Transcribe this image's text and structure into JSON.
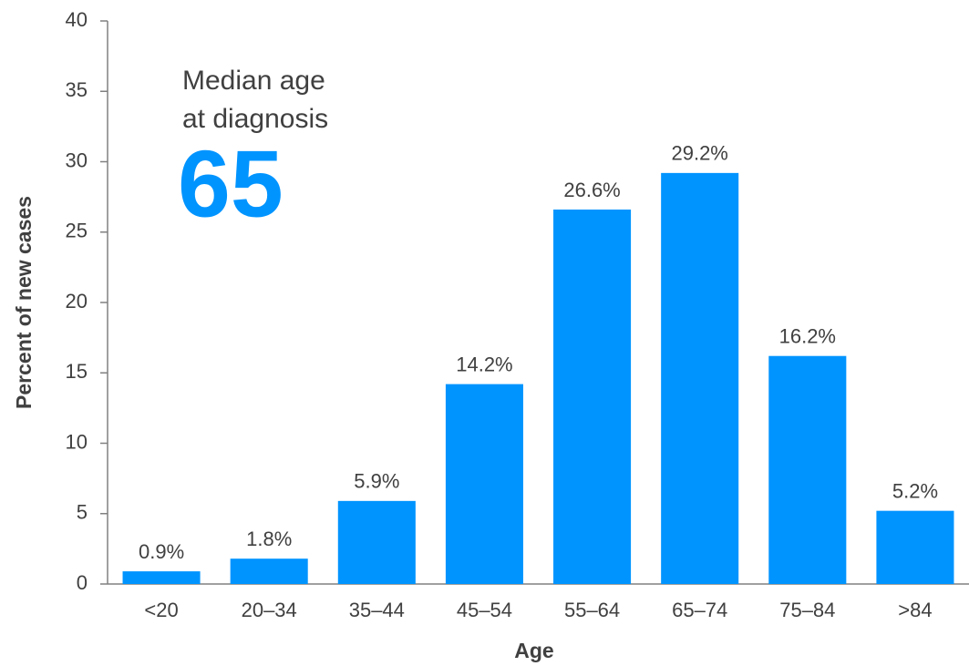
{
  "chart_data": {
    "type": "bar",
    "x_label": "Age",
    "y_label": "Percent of new cases",
    "annotation_lines": [
      "Median age",
      "at diagnosis"
    ],
    "annotation_value": "65",
    "categories": [
      "<20",
      "20–34",
      "35–44",
      "45–54",
      "55–64",
      "65–74",
      "75–84",
      ">84"
    ],
    "values": [
      0.9,
      1.8,
      5.9,
      14.2,
      26.6,
      29.2,
      16.2,
      5.2
    ],
    "value_labels": [
      "0.9%",
      "1.8%",
      "5.9%",
      "14.2%",
      "26.6%",
      "29.2%",
      "16.2%",
      "5.2%"
    ],
    "color": "#0094ff",
    "ylim": [
      0,
      40
    ],
    "yticks": [
      0,
      5,
      10,
      15,
      20,
      25,
      30,
      35,
      40
    ],
    "grid": false
  }
}
